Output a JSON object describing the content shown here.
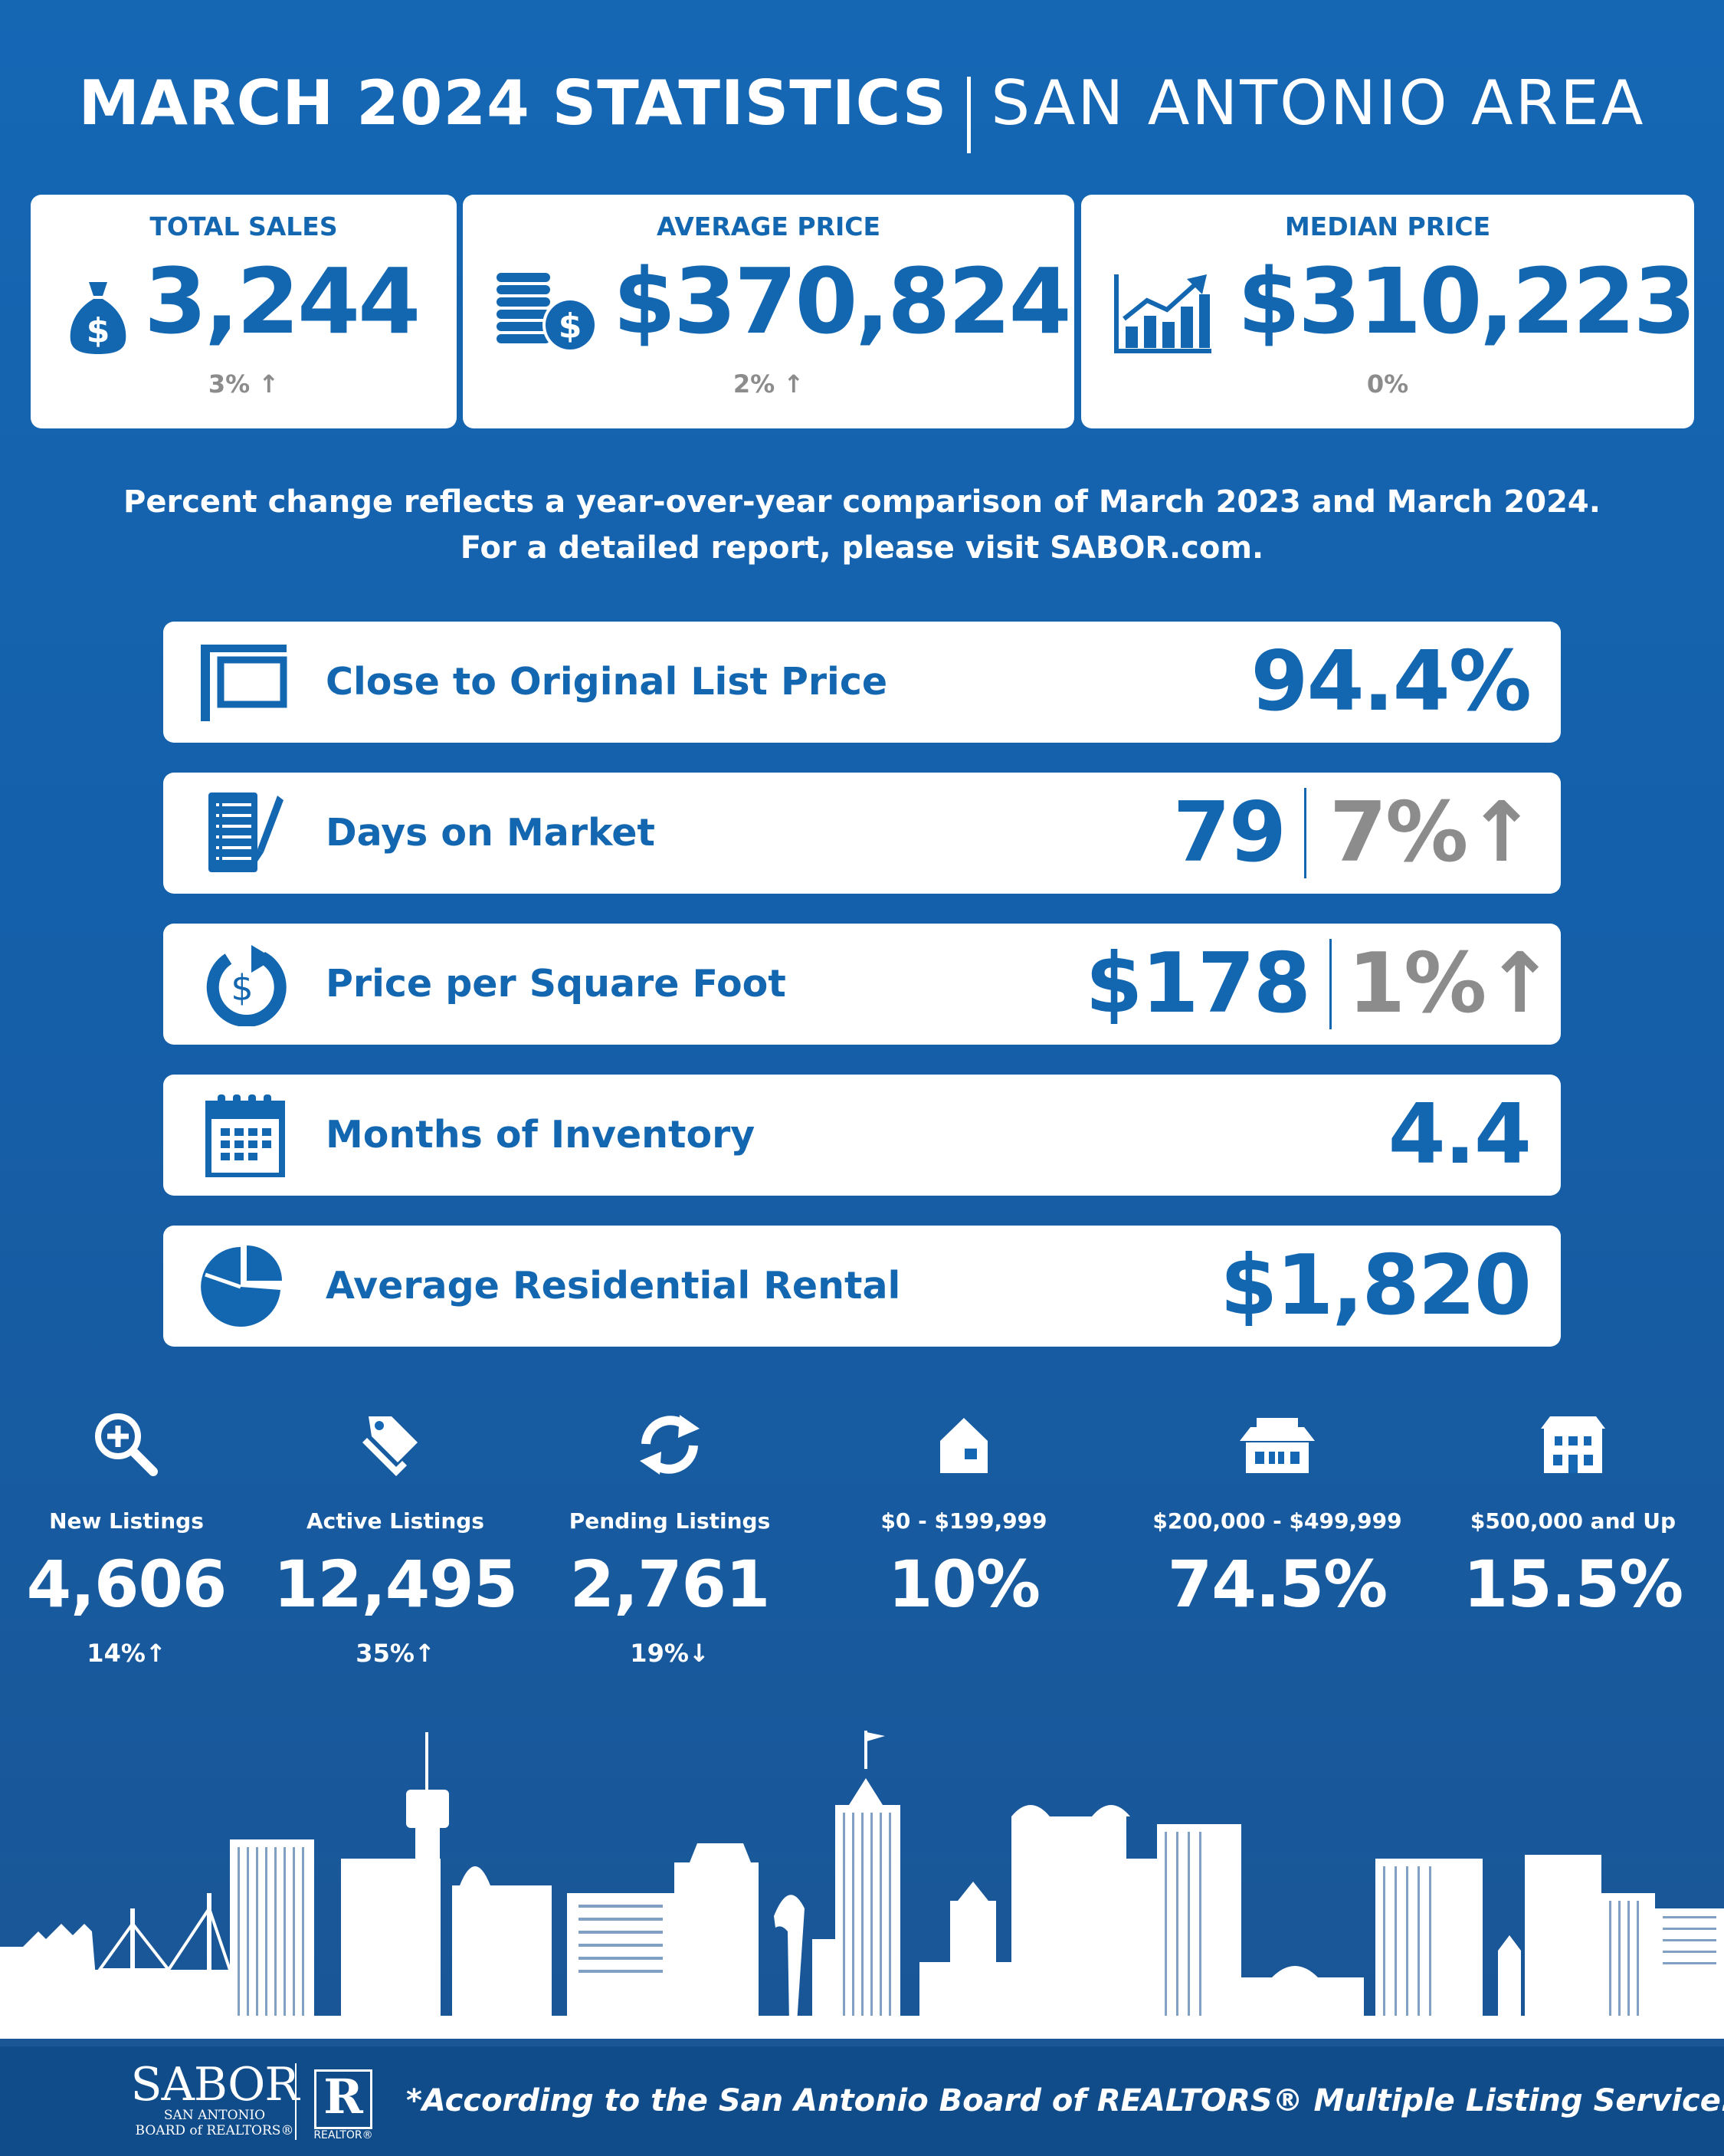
{
  "header": {
    "title": "MARCH 2024 STATISTICS",
    "subtitle": "SAN ANTONIO AREA"
  },
  "top_cards": [
    {
      "label": "TOTAL SALES",
      "value": "3,244",
      "change": "3% ↑",
      "icon": "money-bag-icon"
    },
    {
      "label": "AVERAGE PRICE",
      "value": "$370,824",
      "change": "2% ↑",
      "icon": "coins-icon"
    },
    {
      "label": "MEDIAN PRICE",
      "value": "$310,223",
      "change": "0%",
      "icon": "bar-chart-rising-icon"
    }
  ],
  "note": {
    "line1": "Percent change reflects a year-over-year comparison of March 2023 and March 2024.",
    "line2": "For a detailed report, please visit SABOR.com."
  },
  "rows": [
    {
      "label": "Close to Original List Price",
      "value": "94.4%",
      "icon": "sign-post-icon"
    },
    {
      "label": "Days on Market",
      "value": "79",
      "change": "7%",
      "change_arrow": "↑",
      "icon": "checklist-icon"
    },
    {
      "label": "Price per Square Foot",
      "value": "$178",
      "change": "1%",
      "change_arrow": "↑",
      "icon": "dollar-cycle-icon"
    },
    {
      "label": "Months of Inventory",
      "value": "4.4",
      "icon": "calendar-icon"
    },
    {
      "label": "Average Residential Rental",
      "value": "$1,820",
      "icon": "pie-chart-icon"
    }
  ],
  "bottom_stats": [
    {
      "label": "New Listings",
      "value": "4,606",
      "change": "14%↑",
      "icon": "search-plus-icon"
    },
    {
      "label": "Active Listings",
      "value": "12,495",
      "change": "35%↑",
      "icon": "tags-icon"
    },
    {
      "label": "Pending Listings",
      "value": "2,761",
      "change": "19%↓",
      "icon": "refresh-icon"
    },
    {
      "label": "$0 - $199,999",
      "value": "10%",
      "icon": "small-house-icon"
    },
    {
      "label": "$200,000 - $499,999",
      "value": "74.5%",
      "icon": "medium-house-icon"
    },
    {
      "label": "$500,000 and Up",
      "value": "15.5%",
      "icon": "large-house-icon"
    }
  ],
  "footer": {
    "logo_main": "SABOR",
    "logo_sub1": "SAN ANTONIO",
    "logo_sub2": "BOARD of REALTORS®",
    "realtor_mark": "R",
    "realtor_label": "REALTOR®",
    "note": "*According to the San Antonio Board of REALTORS® Multiple Listing Service."
  },
  "colors": {
    "background": "#1567b4",
    "accent": "#1366b0",
    "gray": "#8c8c8c",
    "footer": "#114c8a"
  }
}
